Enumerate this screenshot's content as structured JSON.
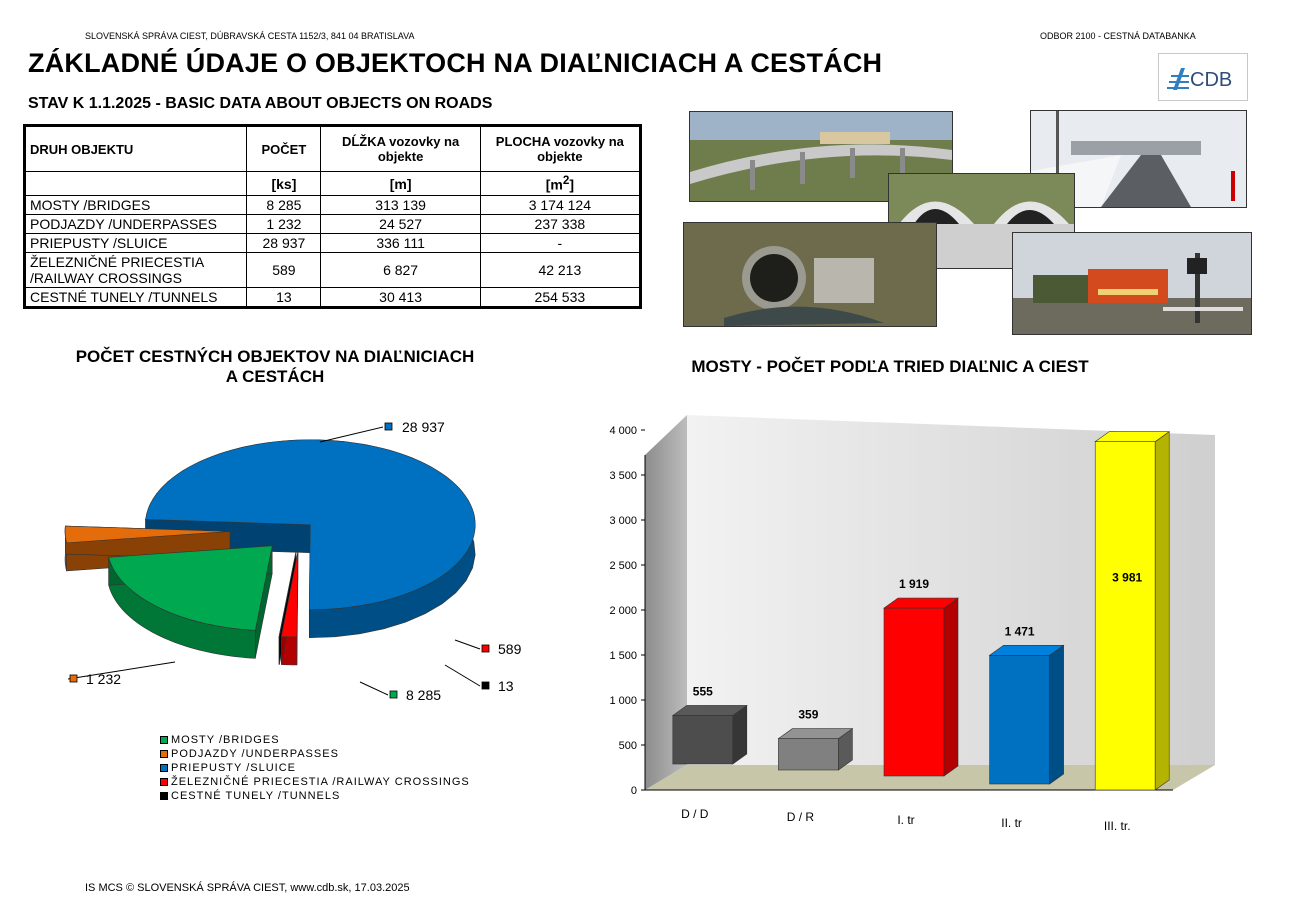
{
  "header": {
    "org": "SLOVENSKÁ SPRÁVA CIEST, DÚBRAVSKÁ CESTA 1152/3, 841 04  BRATISLAVA",
    "dept": "ODBOR 2100 - CESTNÁ DATABANKA",
    "title": "ZÁKLADNÉ ÚDAJE O OBJEKTOCH NA DIAĽNICIACH A CESTÁCH",
    "subtitle": "STAV K 1.1.2025 - BASIC DATA ABOUT OBJECTS ON ROADS",
    "logo_text": "CDB"
  },
  "table": {
    "headers": [
      "DRUH OBJEKTU",
      "POČET",
      "DĹŽKA vozovky na objekte",
      "PLOCHA vozovky na objekte"
    ],
    "units": [
      "",
      "[ks]",
      "[m]",
      "[m2]"
    ],
    "rows": [
      {
        "name": "MOSTY /BRIDGES",
        "count": "8 285",
        "length": "313 139",
        "area": "3 174 124"
      },
      {
        "name": "PODJAZDY /UNDERPASSES",
        "count": "1 232",
        "length": "24 527",
        "area": "237 338"
      },
      {
        "name": "PRIEPUSTY /SLUICE",
        "count": "28 937",
        "length": "336 111",
        "area": "-"
      },
      {
        "name": "ŽELEZNIČNÉ PRIECESTIA /RAILWAY CROSSINGS",
        "count": "589",
        "length": "6 827",
        "area": "42 213"
      },
      {
        "name": "CESTNÉ TUNELY /TUNNELS",
        "count": "13",
        "length": "30 413",
        "area": "254 533"
      }
    ]
  },
  "pie": {
    "title_line1": "POČET CESTNÝCH OBJEKTOV NA DIAĽNICIACH",
    "title_line2": "A CESTÁCH"
  },
  "bars": {
    "title": "MOSTY - POČET PODĽA TRIED DIAĽNIC A CIEST"
  },
  "chart_data": [
    {
      "type": "pie",
      "title": "POČET CESTNÝCH OBJEKTOV NA DIAĽNICIACH A CESTÁCH",
      "categories": [
        "MOSTY /BRIDGES",
        "PODJAZDY /UNDERPASSES",
        "PRIEPUSTY /SLUICE",
        "ŽELEZNIČNÉ PRIECESTIA /RAILWAY CROSSINGS",
        "CESTNÉ TUNELY /TUNNELS"
      ],
      "values": [
        8285,
        1232,
        28937,
        589,
        13
      ],
      "labels": [
        "8 285",
        "1 232",
        "28 937",
        "589",
        "13"
      ],
      "colors": [
        "#00a94f",
        "#e46c0a",
        "#0070c0",
        "#ff0000",
        "#000000"
      ],
      "legend_position": "bottom"
    },
    {
      "type": "bar",
      "title": "MOSTY - POČET PODĽA TRIED DIAĽNIC A CIEST",
      "categories": [
        "D / D",
        "D / R",
        "I. tr",
        "II. tr",
        "III. tr."
      ],
      "values": [
        555,
        359,
        1919,
        1471,
        3981
      ],
      "labels": [
        "555",
        "359",
        "1 919",
        "1 471",
        "3 981"
      ],
      "colors": [
        "#4d4d4d",
        "#808080",
        "#ff0000",
        "#0070c0",
        "#ffff00"
      ],
      "ylim": [
        0,
        4000
      ],
      "yticks": [
        "0",
        "500",
        "1 000",
        "1 500",
        "2 000",
        "2 500",
        "3 000",
        "3 500",
        "4 000"
      ],
      "grid": false
    }
  ],
  "footer": "IS MCS © SLOVENSKÁ SPRÁVA CIEST, www.cdb.sk, 17.03.2025"
}
